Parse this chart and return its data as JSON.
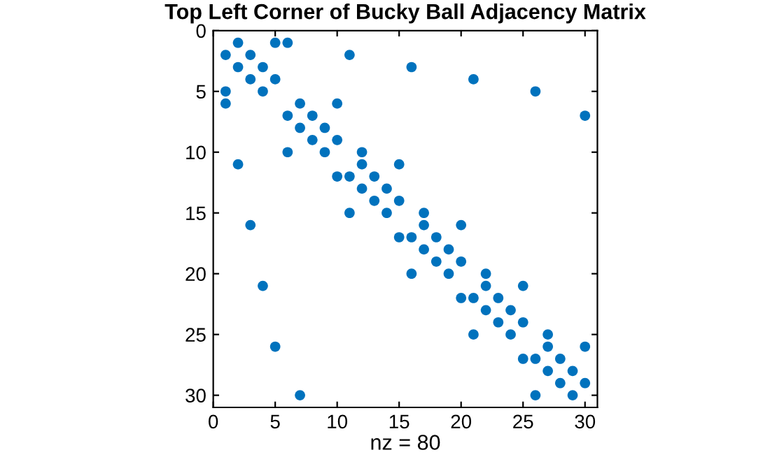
{
  "chart_data": {
    "type": "scatter",
    "title": "Top Left Corner of Bucky Ball Adjacency Matrix",
    "xlabel": "nz = 80",
    "x": [
      2,
      5,
      6,
      1,
      3,
      11,
      2,
      4,
      16,
      3,
      5,
      21,
      1,
      4,
      26,
      1,
      7,
      10,
      6,
      8,
      30,
      7,
      9,
      8,
      10,
      6,
      9,
      12,
      2,
      12,
      15,
      10,
      11,
      13,
      12,
      14,
      13,
      15,
      11,
      14,
      17,
      3,
      17,
      20,
      15,
      16,
      18,
      17,
      19,
      18,
      20,
      16,
      19,
      22,
      4,
      22,
      25,
      20,
      21,
      23,
      22,
      24,
      23,
      25,
      21,
      24,
      27,
      5,
      27,
      30,
      25,
      26,
      28,
      27,
      29,
      28,
      30,
      7,
      26,
      29
    ],
    "series": [
      {
        "color": "#0072bd",
        "values": [
          1,
          1,
          1,
          2,
          2,
          2,
          3,
          3,
          3,
          4,
          4,
          4,
          5,
          5,
          5,
          6,
          6,
          6,
          7,
          7,
          7,
          8,
          8,
          9,
          9,
          10,
          10,
          10,
          11,
          11,
          11,
          12,
          12,
          12,
          13,
          13,
          14,
          14,
          15,
          15,
          15,
          16,
          16,
          16,
          17,
          17,
          17,
          18,
          18,
          19,
          19,
          20,
          20,
          20,
          21,
          21,
          21,
          22,
          22,
          22,
          23,
          23,
          24,
          24,
          25,
          25,
          25,
          26,
          26,
          26,
          27,
          27,
          27,
          28,
          28,
          29,
          29,
          30,
          30,
          30
        ]
      }
    ],
    "xlim": [
      0,
      31
    ],
    "ylim": [
      31,
      0
    ],
    "xticks": [
      0,
      5,
      10,
      15,
      20,
      25,
      30
    ],
    "yticks": [
      0,
      5,
      10,
      15,
      20,
      25,
      30
    ],
    "marker": "circle",
    "grid": false,
    "legend": false
  }
}
